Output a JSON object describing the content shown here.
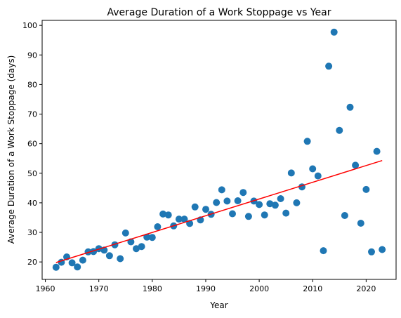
{
  "chart_data": {
    "type": "scatter",
    "title": "Average Duration of a Work Stoppage vs Year",
    "xlabel": "Year",
    "ylabel": "Average Duration of a Work Stoppage (days)",
    "xlim": [
      1959.4,
      2025.6
    ],
    "ylim": [
      14.1,
      101.7
    ],
    "xticks": [
      1960,
      1970,
      1980,
      1990,
      2000,
      2010,
      2020
    ],
    "yticks": [
      20,
      30,
      40,
      50,
      60,
      70,
      80,
      90,
      100
    ],
    "grid": false,
    "legend": "none",
    "colors": {
      "points": "#1f77b4",
      "trend": "#ff0000"
    },
    "points": [
      [
        1962,
        18.2
      ],
      [
        1963,
        19.9
      ],
      [
        1964,
        21.7
      ],
      [
        1965,
        19.7
      ],
      [
        1966,
        18.3
      ],
      [
        1967,
        20.6
      ],
      [
        1968,
        23.4
      ],
      [
        1969,
        23.5
      ],
      [
        1970,
        24.5
      ],
      [
        1971,
        24.0
      ],
      [
        1972,
        22.1
      ],
      [
        1973,
        25.8
      ],
      [
        1974,
        21.1
      ],
      [
        1975,
        29.8
      ],
      [
        1976,
        26.8
      ],
      [
        1977,
        24.5
      ],
      [
        1978,
        25.2
      ],
      [
        1979,
        28.4
      ],
      [
        1980,
        28.3
      ],
      [
        1981,
        31.9
      ],
      [
        1982,
        36.2
      ],
      [
        1983,
        35.9
      ],
      [
        1984,
        32.2
      ],
      [
        1985,
        34.5
      ],
      [
        1986,
        34.5
      ],
      [
        1987,
        33.0
      ],
      [
        1988,
        38.6
      ],
      [
        1989,
        34.2
      ],
      [
        1990,
        37.8
      ],
      [
        1991,
        36.1
      ],
      [
        1992,
        40.1
      ],
      [
        1993,
        44.4
      ],
      [
        1994,
        40.6
      ],
      [
        1995,
        36.3
      ],
      [
        1996,
        40.7
      ],
      [
        1997,
        43.5
      ],
      [
        1998,
        35.4
      ],
      [
        1999,
        40.6
      ],
      [
        2000,
        39.4
      ],
      [
        2001,
        35.9
      ],
      [
        2002,
        39.7
      ],
      [
        2003,
        39.2
      ],
      [
        2004,
        41.4
      ],
      [
        2005,
        36.5
      ],
      [
        2006,
        50.1
      ],
      [
        2007,
        40.0
      ],
      [
        2008,
        45.4
      ],
      [
        2009,
        60.8
      ],
      [
        2010,
        51.5
      ],
      [
        2011,
        49.1
      ],
      [
        2012,
        23.8
      ],
      [
        2013,
        86.2
      ],
      [
        2014,
        97.7
      ],
      [
        2015,
        64.5
      ],
      [
        2016,
        35.7
      ],
      [
        2017,
        72.3
      ],
      [
        2018,
        52.7
      ],
      [
        2019,
        33.1
      ],
      [
        2020,
        44.5
      ],
      [
        2021,
        23.4
      ],
      [
        2022,
        57.4
      ],
      [
        2023,
        24.2
      ]
    ],
    "trendline": {
      "x": [
        1962,
        2023
      ],
      "y": [
        19.8,
        54.3
      ]
    }
  }
}
